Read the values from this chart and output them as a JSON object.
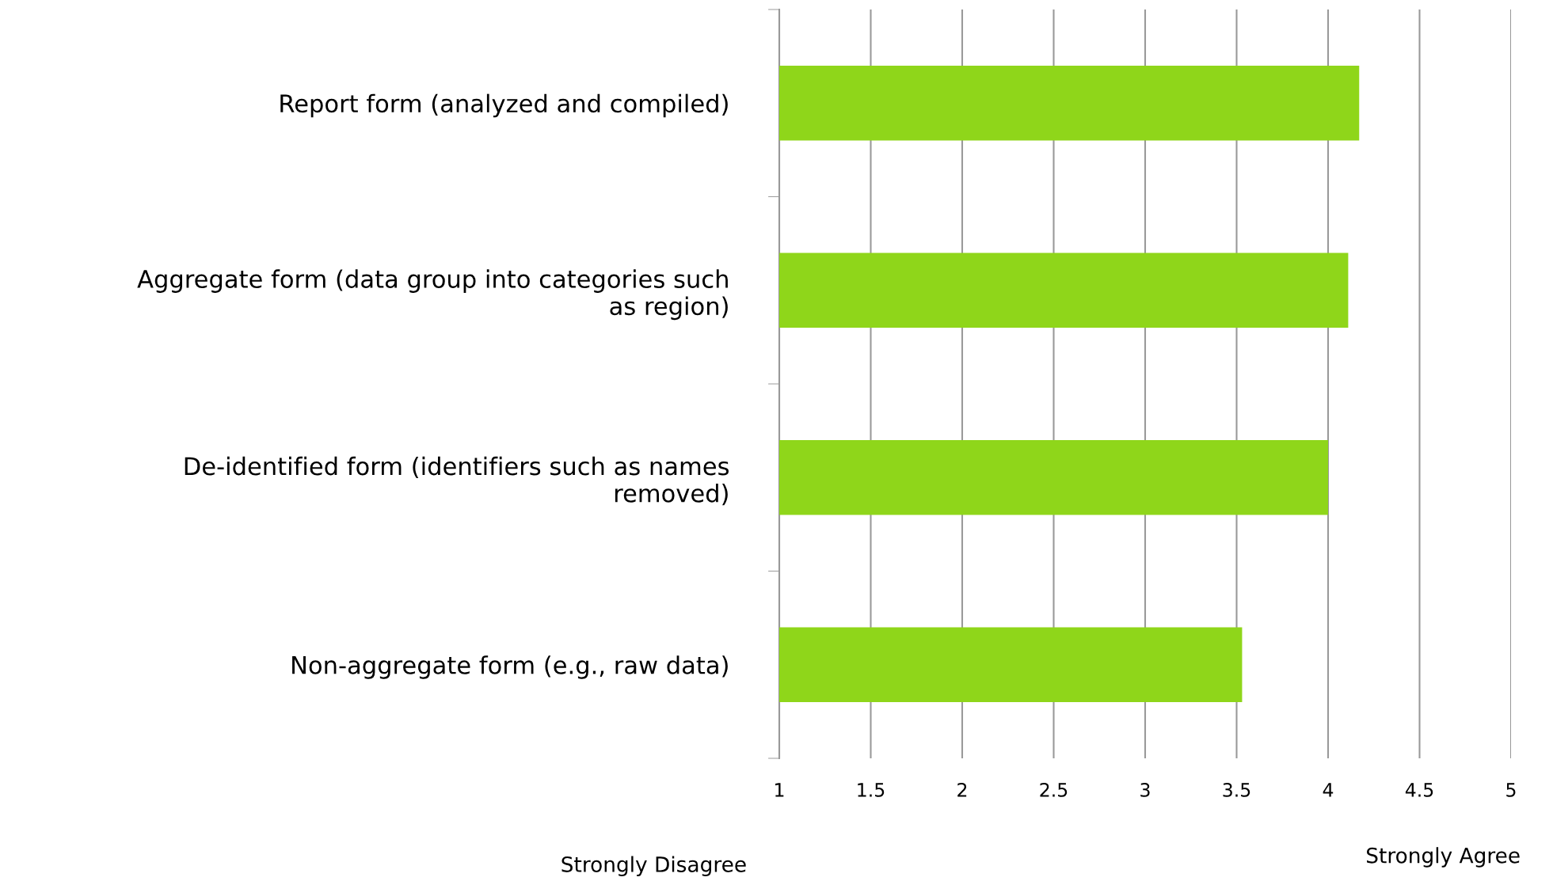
{
  "chart_data": {
    "type": "bar",
    "orientation": "horizontal",
    "categories": [
      "Report form (analyzed and compiled)",
      "Aggregate form (data group into categories such\nas region)",
      "De-identified form (identifiers such as names\nremoved)",
      "Non-aggregate form (e.g., raw data)"
    ],
    "values": [
      4.17,
      4.11,
      4.0,
      3.53
    ],
    "color": "#8fd61a",
    "xlim": [
      1,
      5
    ],
    "xticks": [
      1,
      1.5,
      2,
      2.5,
      3,
      3.5,
      4,
      4.5,
      5
    ],
    "grid": "x",
    "legend": false,
    "annotations": [
      "Strongly Disagree",
      "Strongly Agree"
    ]
  }
}
